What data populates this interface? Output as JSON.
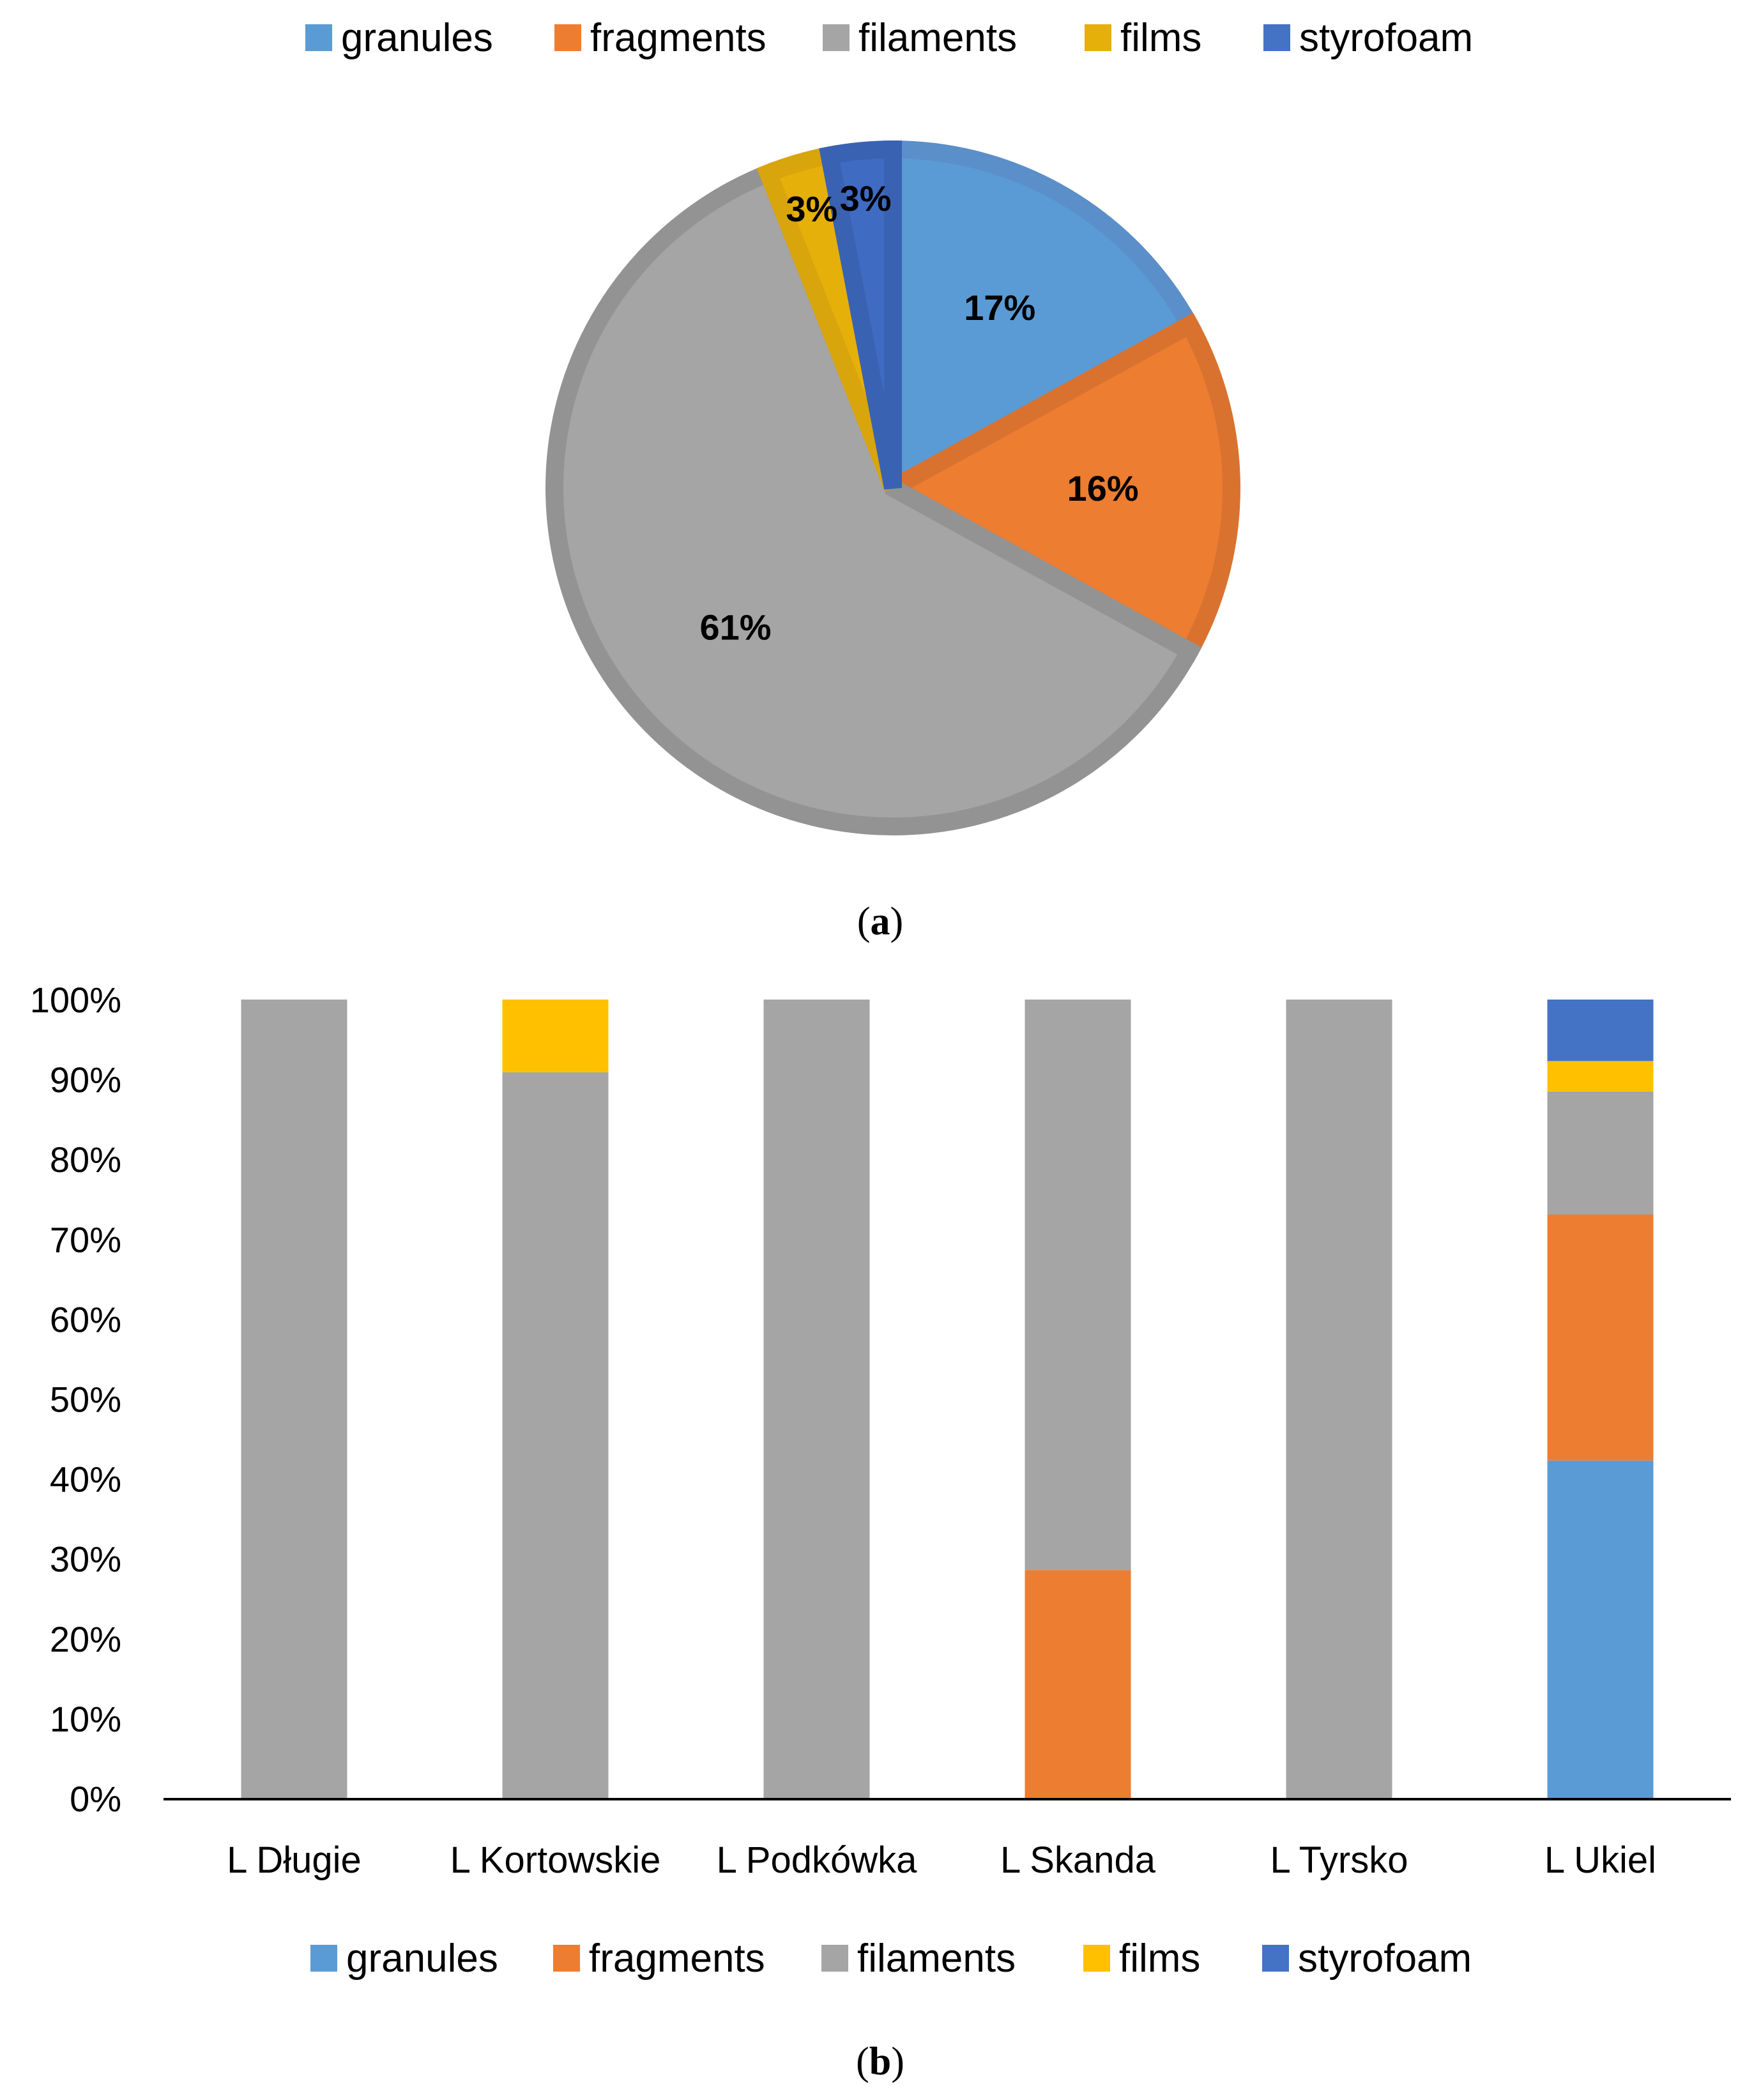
{
  "chart_data": [
    {
      "type": "pie",
      "legend": {
        "position": "top",
        "entries": [
          {
            "label": "granules",
            "color": "#5B9BD5"
          },
          {
            "label": "fragments",
            "color": "#ED7D31"
          },
          {
            "label": "filaments",
            "color": "#A5A5A5"
          },
          {
            "label": "films",
            "color": "#E6B00A"
          },
          {
            "label": "styrofoam",
            "color": "#4472C4"
          }
        ]
      },
      "slices": [
        {
          "name": "granules",
          "value": 17,
          "label": "17%",
          "color": "#5B9BD5",
          "edge": "#5A8FC9"
        },
        {
          "name": "fragments",
          "value": 16,
          "label": "16%",
          "color": "#ED7D31",
          "edge": "#D9722E"
        },
        {
          "name": "filaments",
          "value": 61,
          "label": "61%",
          "color": "#A5A5A5",
          "edge": "#939393"
        },
        {
          "name": "films",
          "value": 3,
          "label": "3%",
          "color": "#E6B00A",
          "edge": "#D8A50C"
        },
        {
          "name": "styrofoam",
          "value": 3,
          "label": "3%",
          "color": "#3F6BC2",
          "edge": "#3A62B3"
        }
      ],
      "start_angle_deg": 0,
      "direction": "clockwise",
      "panel_label": {
        "open": "(",
        "letter": "a",
        "close": ")"
      }
    },
    {
      "type": "bar",
      "stacked": true,
      "categories": [
        "L Długie",
        "L Kortowskie",
        "L Podkówka",
        "L Skanda",
        "L Tyrsko",
        "L Ukiel"
      ],
      "series": [
        {
          "name": "granules",
          "color": "#5B9BD5",
          "values": [
            0,
            0,
            0,
            0,
            0,
            42.3
          ]
        },
        {
          "name": "fragments",
          "color": "#ED7D31",
          "values": [
            0,
            0,
            0,
            28.6,
            0,
            30.8
          ]
        },
        {
          "name": "filaments",
          "color": "#A5A5A5",
          "values": [
            100,
            90.9,
            100,
            71.4,
            100,
            15.4
          ]
        },
        {
          "name": "films",
          "color": "#FFC000",
          "values": [
            0,
            9.1,
            0,
            0,
            0,
            3.8
          ]
        },
        {
          "name": "styrofoam",
          "color": "#4472C4",
          "values": [
            0,
            0,
            0,
            0,
            0,
            7.7
          ]
        }
      ],
      "ylim": [
        0,
        100
      ],
      "y_ticks": [
        "0%",
        "10%",
        "20%",
        "30%",
        "40%",
        "50%",
        "60%",
        "70%",
        "80%",
        "90%",
        "100%"
      ],
      "grid": false,
      "legend": {
        "position": "bottom"
      },
      "panel_label": {
        "open": "(",
        "letter": "b",
        "close": ")"
      }
    }
  ]
}
